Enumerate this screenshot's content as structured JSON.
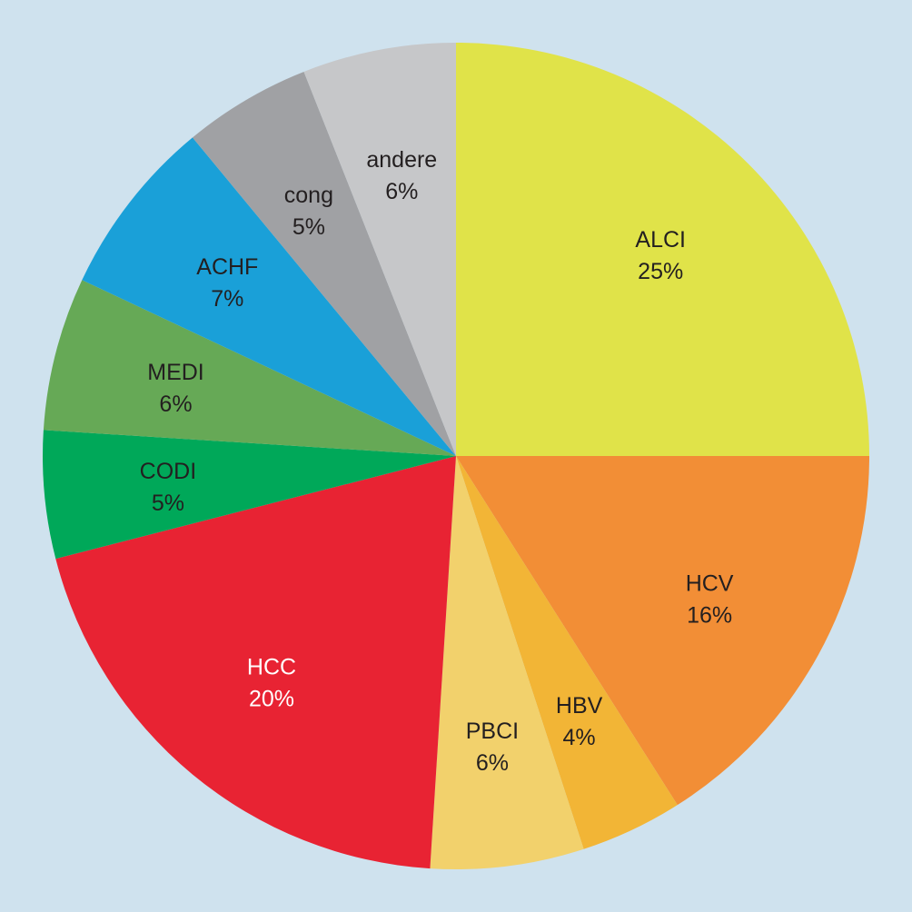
{
  "background": "#cfe2ee",
  "chart_data": {
    "type": "pie",
    "title": "",
    "start_angle_deg": 0,
    "direction": "clockwise",
    "slices": [
      {
        "label": "ALCI",
        "value": 25,
        "percent_label": "25%",
        "color": "#e0e349",
        "label_color": "#231f20"
      },
      {
        "label": "HCV",
        "value": 16,
        "percent_label": "16%",
        "color": "#f28e36",
        "label_color": "#231f20"
      },
      {
        "label": "HBV",
        "value": 4,
        "percent_label": "4%",
        "color": "#f2b536",
        "label_color": "#231f20"
      },
      {
        "label": "PBCI",
        "value": 6,
        "percent_label": "6%",
        "color": "#f2d16c",
        "label_color": "#231f20"
      },
      {
        "label": "HCC",
        "value": 20,
        "percent_label": "20%",
        "color": "#e82333",
        "label_color": "#ffffff"
      },
      {
        "label": "CODI",
        "value": 5,
        "percent_label": "5%",
        "color": "#00a859",
        "label_color": "#231f20"
      },
      {
        "label": "MEDI",
        "value": 6,
        "percent_label": "6%",
        "color": "#66a956",
        "label_color": "#231f20"
      },
      {
        "label": "ACHF",
        "value": 7,
        "percent_label": "7%",
        "color": "#1aa0d8",
        "label_color": "#231f20"
      },
      {
        "label": "cong",
        "value": 5,
        "percent_label": "5%",
        "color": "#a0a1a4",
        "label_color": "#231f20"
      },
      {
        "label": "andere",
        "value": 6,
        "percent_label": "6%",
        "color": "#c6c7c9",
        "label_color": "#231f20"
      }
    ]
  }
}
